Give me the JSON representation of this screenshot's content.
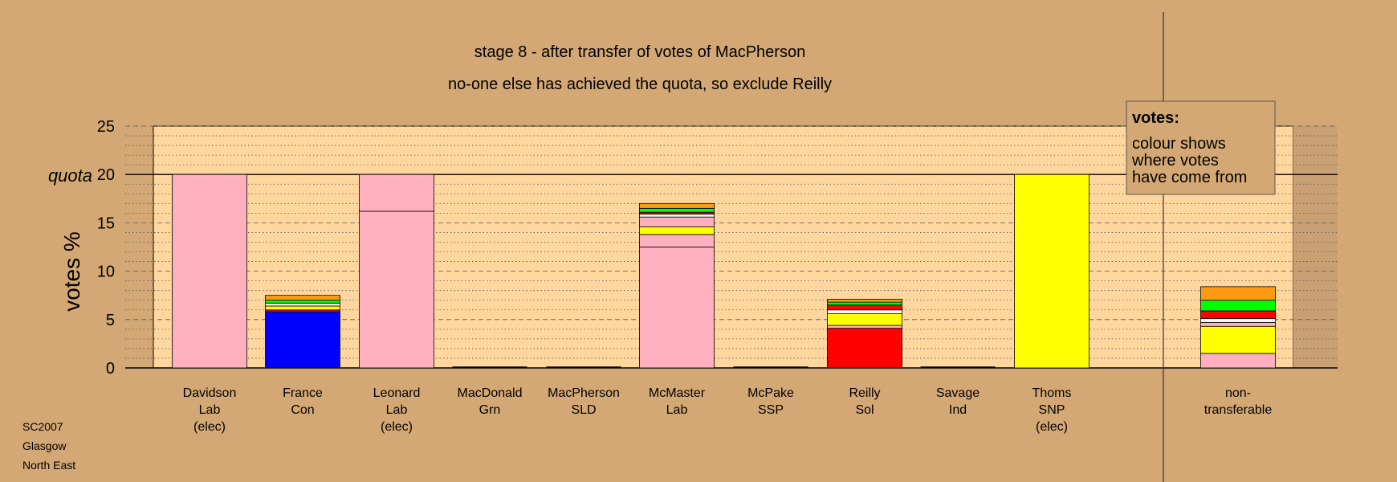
{
  "chart_data": {
    "type": "bar",
    "stacked": true,
    "title": "stage 8 - after transfer of votes of MacPherson",
    "subtitle": "no-one else has achieved the quota, so exclude Reilly",
    "ylabel": "votes %",
    "ylim": [
      0,
      25
    ],
    "yticks": [
      "0",
      "5",
      "10",
      "15",
      "20",
      "25"
    ],
    "quota": {
      "label": "quota",
      "value": 20
    },
    "grid": true,
    "legend": {
      "position": "top-right",
      "title": "votes:",
      "lines": [
        "colour shows",
        "where votes",
        "have come from"
      ]
    },
    "colors": {
      "Lab": "#ffb0c0",
      "Con": "#0000ff",
      "SNP": "#ffff00",
      "Sol": "#ff0000",
      "SLD": "#f8f8f8",
      "Grn": "#00ff00",
      "SSP": "#ff9b12",
      "other": "#ffd79e"
    },
    "categories": [
      {
        "name": "Davidson",
        "party": "Lab",
        "note": "(elec)",
        "segments": [
          {
            "from": "Lab",
            "value": 20.0
          }
        ]
      },
      {
        "name": "France",
        "party": "Con",
        "note": "",
        "segments": [
          {
            "from": "Con",
            "value": 5.8
          },
          {
            "from": "Sol",
            "value": 0.2
          },
          {
            "from": "SNP",
            "value": 0.4
          },
          {
            "from": "SLD",
            "value": 0.3
          },
          {
            "from": "Grn",
            "value": 0.3
          },
          {
            "from": "SSP",
            "value": 0.5
          }
        ]
      },
      {
        "name": "Leonard",
        "party": "Lab",
        "note": "(elec)",
        "segments": [
          {
            "from": "Lab",
            "value": 16.2
          },
          {
            "from": "Lab",
            "value": 3.8
          }
        ]
      },
      {
        "name": "MacDonald",
        "party": "Grn",
        "note": "",
        "segments": []
      },
      {
        "name": "MacPherson",
        "party": "SLD",
        "note": "",
        "segments": []
      },
      {
        "name": "McMaster",
        "party": "Lab",
        "note": "",
        "segments": [
          {
            "from": "Lab",
            "value": 12.5
          },
          {
            "from": "Lab",
            "value": 1.3
          },
          {
            "from": "SNP",
            "value": 0.8
          },
          {
            "from": "Lab",
            "value": 1.0
          },
          {
            "from": "SLD",
            "value": 0.3
          },
          {
            "from": "Sol",
            "value": 0.2
          },
          {
            "from": "Grn",
            "value": 0.4
          },
          {
            "from": "SSP",
            "value": 0.5
          }
        ]
      },
      {
        "name": "McPake",
        "party": "SSP",
        "note": "",
        "segments": []
      },
      {
        "name": "Reilly",
        "party": "Sol",
        "note": "",
        "segments": [
          {
            "from": "Sol",
            "value": 4.1
          },
          {
            "from": "Lab",
            "value": 0.3
          },
          {
            "from": "SNP",
            "value": 1.2
          },
          {
            "from": "SLD",
            "value": 0.4
          },
          {
            "from": "Sol",
            "value": 0.5
          },
          {
            "from": "Grn",
            "value": 0.3
          },
          {
            "from": "SSP",
            "value": 0.3
          }
        ]
      },
      {
        "name": "Savage",
        "party": "Ind",
        "note": "",
        "segments": []
      },
      {
        "name": "Thoms",
        "party": "SNP",
        "note": "(elec)",
        "segments": [
          {
            "from": "SNP",
            "value": 20.0
          }
        ]
      },
      {
        "name": "non-",
        "party": "transferable",
        "note": "",
        "segments": [
          {
            "from": "Lab",
            "value": 1.5
          },
          {
            "from": "SNP",
            "value": 2.8
          },
          {
            "from": "Lab",
            "value": 0.4
          },
          {
            "from": "SLD",
            "value": 0.4
          },
          {
            "from": "Sol",
            "value": 0.8
          },
          {
            "from": "Grn",
            "value": 1.1
          },
          {
            "from": "SSP",
            "value": 1.4
          }
        ]
      }
    ]
  },
  "footer": {
    "line1": "SC2007",
    "line2": "Glasgow",
    "line3": "North East"
  }
}
